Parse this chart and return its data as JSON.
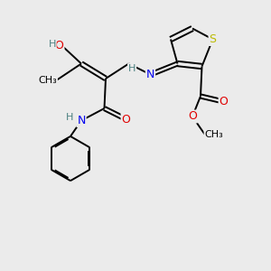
{
  "bg_color": "#ebebeb",
  "atom_colors": {
    "C": "#000000",
    "H": "#4a8080",
    "O": "#e00000",
    "N": "#0000ee",
    "S": "#bbbb00"
  }
}
